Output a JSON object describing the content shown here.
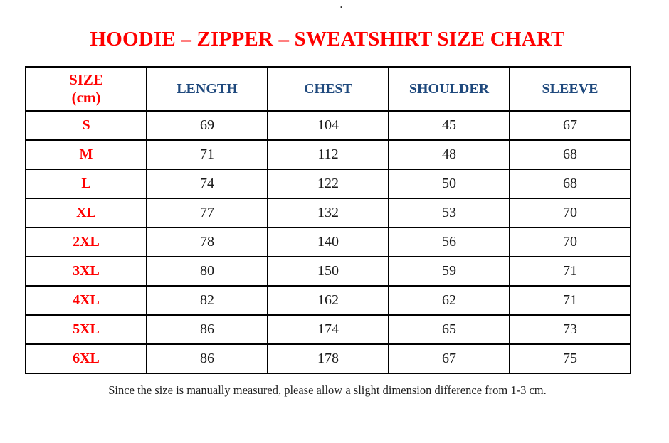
{
  "page": {
    "stray_dot": ".",
    "title": "HOODIE – ZIPPER – SWEATSHIRT SIZE CHART",
    "footnote": "Since the size is manually measured, please allow a slight dimension difference from 1-3 cm."
  },
  "colors": {
    "title_red": "#FF0000",
    "header_blue": "#1F497D",
    "body_text": "#1A1A1A",
    "table_border": "#000000"
  },
  "table": {
    "size_header": {
      "line1": "SIZE",
      "line2": "(cm)"
    },
    "measure_headers": [
      "LENGTH",
      "CHEST",
      "SHOULDER",
      "SLEEVE"
    ],
    "rows": [
      {
        "size": "S",
        "values": [
          "69",
          "104",
          "45",
          "67"
        ]
      },
      {
        "size": "M",
        "values": [
          "71",
          "112",
          "48",
          "68"
        ]
      },
      {
        "size": "L",
        "values": [
          "74",
          "122",
          "50",
          "68"
        ]
      },
      {
        "size": "XL",
        "values": [
          "77",
          "132",
          "53",
          "70"
        ]
      },
      {
        "size": "2XL",
        "values": [
          "78",
          "140",
          "56",
          "70"
        ]
      },
      {
        "size": "3XL",
        "values": [
          "80",
          "150",
          "59",
          "71"
        ]
      },
      {
        "size": "4XL",
        "values": [
          "82",
          "162",
          "62",
          "71"
        ]
      },
      {
        "size": "5XL",
        "values": [
          "86",
          "174",
          "65",
          "73"
        ]
      },
      {
        "size": "6XL",
        "values": [
          "86",
          "178",
          "67",
          "75"
        ]
      }
    ]
  }
}
